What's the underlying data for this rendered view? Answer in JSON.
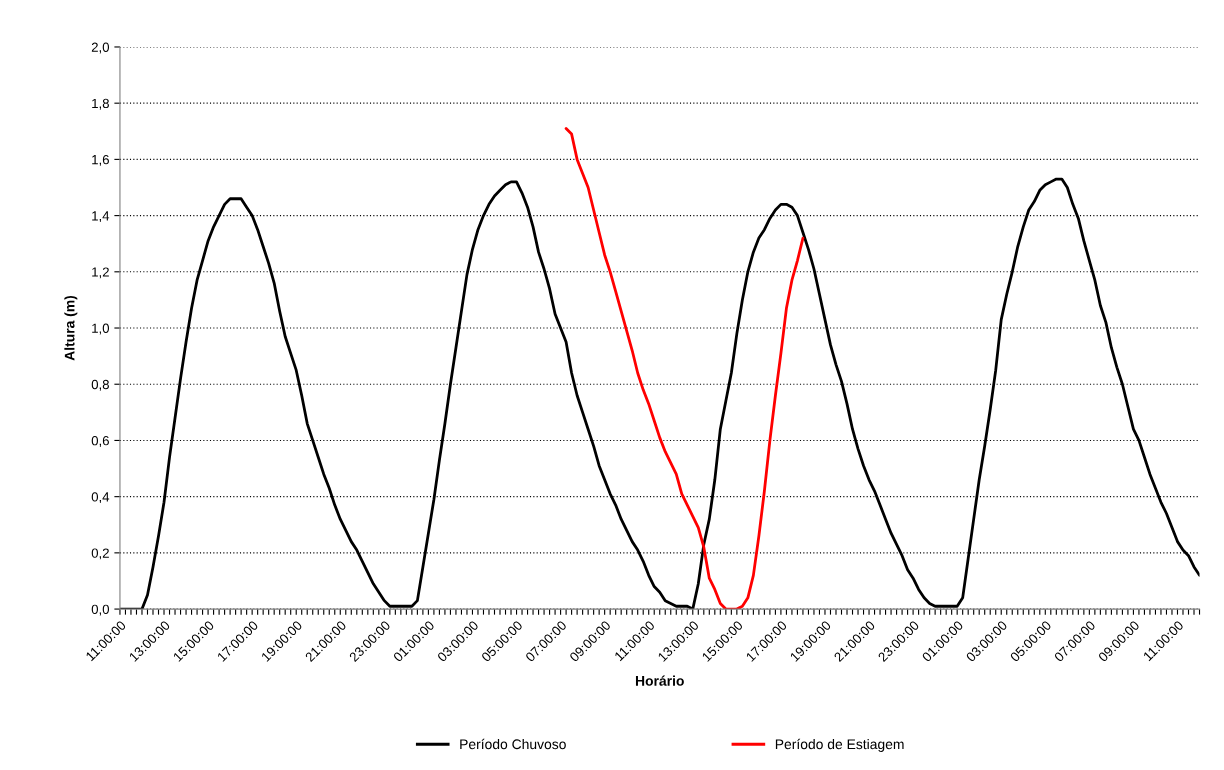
{
  "chart_data": {
    "type": "line",
    "xlabel": "Horário",
    "ylabel": "Altura (m)",
    "categories": [
      "11:00:00",
      null,
      null,
      null,
      null,
      null,
      null,
      null,
      "13:00:00",
      null,
      null,
      null,
      null,
      null,
      null,
      null,
      "15:00:00",
      null,
      null,
      null,
      null,
      null,
      null,
      null,
      "17:00:00",
      null,
      null,
      null,
      null,
      null,
      null,
      null,
      "19:00:00",
      null,
      null,
      null,
      null,
      null,
      null,
      null,
      "21:00:00",
      null,
      null,
      null,
      null,
      null,
      null,
      null,
      "23:00:00",
      null,
      null,
      null,
      null,
      null,
      null,
      null,
      "01:00:00",
      null,
      null,
      null,
      null,
      null,
      null,
      null,
      "03:00:00",
      null,
      null,
      null,
      null,
      null,
      null,
      null,
      "05:00:00",
      null,
      null,
      null,
      null,
      null,
      null,
      null,
      "07:00:00",
      null,
      null,
      null,
      null,
      null,
      null,
      null,
      "09:00:00",
      null,
      null,
      null,
      null,
      null,
      null,
      null,
      "11:00:00",
      null,
      null,
      null,
      null,
      null,
      null,
      null,
      "13:00:00",
      null,
      null,
      null,
      null,
      null,
      null,
      null,
      "15:00:00",
      null,
      null,
      null,
      null,
      null,
      null,
      null,
      "17:00:00",
      null,
      null,
      null,
      null,
      null,
      null,
      null,
      "19:00:00",
      null,
      null,
      null,
      null,
      null,
      null,
      null,
      "21:00:00",
      null,
      null,
      null,
      null,
      null,
      null,
      null,
      "23:00:00",
      null,
      null,
      null,
      null,
      null,
      null,
      null,
      "01:00:00",
      null,
      null,
      null,
      null,
      null,
      null,
      null,
      "03:00:00",
      null,
      null,
      null,
      null,
      null,
      null,
      null,
      "05:00:00",
      null,
      null,
      null,
      null,
      null,
      null,
      null,
      "07:00:00",
      null,
      null,
      null,
      null,
      null,
      null,
      null,
      "09:00:00",
      null,
      null,
      null,
      null,
      null,
      null,
      null,
      "11:00:00",
      null,
      null,
      null,
      null
    ],
    "ylim": [
      0,
      2.0
    ],
    "yticks": [
      {
        "value": 0,
        "label": "0,0"
      },
      {
        "value": 0.2,
        "label": "0,2"
      },
      {
        "value": 0.4,
        "label": "0,4"
      },
      {
        "value": 0.6,
        "label": "0,6"
      },
      {
        "value": 0.8,
        "label": "0,8"
      },
      {
        "value": 1.0,
        "label": "1,0"
      },
      {
        "value": 1.2,
        "label": "1,2"
      },
      {
        "value": 1.4,
        "label": "1,4"
      },
      {
        "value": 1.6,
        "label": "1,6"
      },
      {
        "value": 1.8,
        "label": "1,8"
      },
      {
        "value": 2.0,
        "label": "2,0"
      }
    ],
    "grid": "y",
    "legend": "bottom",
    "line_style": "solid",
    "marker": "none",
    "series": [
      {
        "name": "Período Chuvoso",
        "color": "#000000",
        "values": [
          0.0,
          0.0,
          0.0,
          0.0,
          0.0,
          0.05,
          0.15,
          0.26,
          0.38,
          0.54,
          0.68,
          0.82,
          0.95,
          1.07,
          1.17,
          1.24,
          1.31,
          1.36,
          1.4,
          1.44,
          1.46,
          1.46,
          1.46,
          1.43,
          1.4,
          1.35,
          1.29,
          1.23,
          1.16,
          1.06,
          0.97,
          0.91,
          0.85,
          0.76,
          0.66,
          0.6,
          0.54,
          0.48,
          0.43,
          0.37,
          0.32,
          0.28,
          0.24,
          0.21,
          0.17,
          0.13,
          0.09,
          0.06,
          0.03,
          0.01,
          0.01,
          0.01,
          0.01,
          0.01,
          0.03,
          0.15,
          0.27,
          0.39,
          0.53,
          0.66,
          0.8,
          0.93,
          1.06,
          1.19,
          1.28,
          1.35,
          1.4,
          1.44,
          1.47,
          1.49,
          1.51,
          1.52,
          1.52,
          1.48,
          1.43,
          1.36,
          1.27,
          1.21,
          1.14,
          1.05,
          1.0,
          0.95,
          0.84,
          0.76,
          0.7,
          0.64,
          0.58,
          0.51,
          0.46,
          0.41,
          0.37,
          0.32,
          0.28,
          0.24,
          0.21,
          0.17,
          0.12,
          0.08,
          0.06,
          0.03,
          0.02,
          0.01,
          0.01,
          0.01,
          0.0,
          0.09,
          0.23,
          0.32,
          0.46,
          0.64,
          0.74,
          0.84,
          0.98,
          1.1,
          1.2,
          1.27,
          1.32,
          1.35,
          1.39,
          1.42,
          1.44,
          1.44,
          1.43,
          1.4,
          1.34,
          1.28,
          1.21,
          1.12,
          1.03,
          0.94,
          0.87,
          0.81,
          0.73,
          0.64,
          0.57,
          0.51,
          0.46,
          0.42,
          0.37,
          0.32,
          0.27,
          0.23,
          0.19,
          0.14,
          0.11,
          0.07,
          0.04,
          0.02,
          0.01,
          0.01,
          0.01,
          0.01,
          0.01,
          0.04,
          0.18,
          0.32,
          0.46,
          0.58,
          0.71,
          0.85,
          1.03,
          1.12,
          1.2,
          1.29,
          1.36,
          1.42,
          1.45,
          1.49,
          1.51,
          1.52,
          1.53,
          1.53,
          1.5,
          1.44,
          1.39,
          1.31,
          1.24,
          1.17,
          1.08,
          1.02,
          0.93,
          0.86,
          0.8,
          0.72,
          0.64,
          0.6,
          0.54,
          0.48,
          0.43,
          0.38,
          0.34,
          0.29,
          0.24,
          0.21,
          0.19,
          0.15,
          0.12
        ]
      },
      {
        "name": "Período de Estiagem",
        "color": "#ff0000",
        "values": [
          null,
          null,
          null,
          null,
          null,
          null,
          null,
          null,
          null,
          null,
          null,
          null,
          null,
          null,
          null,
          null,
          null,
          null,
          null,
          null,
          null,
          null,
          null,
          null,
          null,
          null,
          null,
          null,
          null,
          null,
          null,
          null,
          null,
          null,
          null,
          null,
          null,
          null,
          null,
          null,
          null,
          null,
          null,
          null,
          null,
          null,
          null,
          null,
          null,
          null,
          null,
          null,
          null,
          null,
          null,
          null,
          null,
          null,
          null,
          null,
          null,
          null,
          null,
          null,
          null,
          null,
          null,
          null,
          null,
          null,
          null,
          null,
          null,
          null,
          null,
          null,
          null,
          null,
          null,
          null,
          null,
          1.71,
          1.69,
          1.6,
          1.55,
          1.5,
          1.42,
          1.34,
          1.26,
          1.2,
          1.13,
          1.06,
          0.99,
          0.92,
          0.84,
          0.78,
          0.73,
          0.67,
          0.61,
          0.56,
          0.52,
          0.48,
          0.41,
          0.37,
          0.33,
          0.29,
          0.22,
          0.11,
          0.07,
          0.02,
          0.0,
          0.0,
          0.0,
          0.01,
          0.04,
          0.12,
          0.26,
          0.42,
          0.6,
          0.76,
          0.91,
          1.07,
          1.17,
          1.24,
          1.32,
          null,
          null,
          null,
          null,
          null,
          null,
          null,
          null,
          null,
          null,
          null,
          null,
          null,
          null,
          null,
          null,
          null,
          null,
          null,
          null,
          null,
          null,
          null,
          null,
          null,
          null,
          null,
          null,
          null,
          null,
          null,
          null,
          null,
          null,
          null,
          null,
          null,
          null,
          null,
          null,
          null,
          null,
          null,
          null,
          null,
          null,
          null,
          null,
          null,
          null,
          null,
          null,
          null,
          null,
          null,
          null,
          null,
          null,
          null,
          null,
          null,
          null,
          null,
          null,
          null,
          null,
          null,
          null,
          null,
          null,
          null,
          null
        ]
      }
    ]
  }
}
